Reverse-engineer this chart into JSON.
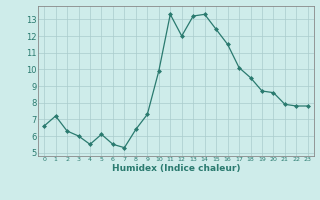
{
  "x": [
    0,
    1,
    2,
    3,
    4,
    5,
    6,
    7,
    8,
    9,
    10,
    11,
    12,
    13,
    14,
    15,
    16,
    17,
    18,
    19,
    20,
    21,
    22,
    23
  ],
  "y": [
    6.6,
    7.2,
    6.3,
    6.0,
    5.5,
    6.1,
    5.5,
    5.3,
    6.4,
    7.3,
    9.9,
    13.3,
    12.0,
    13.2,
    13.3,
    12.4,
    11.5,
    10.1,
    9.5,
    8.7,
    8.6,
    7.9,
    7.8,
    7.8
  ],
  "xlabel": "Humidex (Indice chaleur)",
  "ylim": [
    4.8,
    13.8
  ],
  "xlim": [
    -0.5,
    23.5
  ],
  "yticks": [
    5,
    6,
    7,
    8,
    9,
    10,
    11,
    12,
    13
  ],
  "xticks": [
    0,
    1,
    2,
    3,
    4,
    5,
    6,
    7,
    8,
    9,
    10,
    11,
    12,
    13,
    14,
    15,
    16,
    17,
    18,
    19,
    20,
    21,
    22,
    23
  ],
  "xtick_labels": [
    "0",
    "1",
    "2",
    "3",
    "4",
    "5",
    "6",
    "7",
    "8",
    "9",
    "10",
    "11",
    "12",
    "13",
    "14",
    "15",
    "16",
    "17",
    "18",
    "19",
    "20",
    "21",
    "22",
    "23"
  ],
  "line_color": "#2a7a6f",
  "bg_color": "#ceecea",
  "grid_color": "#aacccc",
  "spine_color": "#888888"
}
